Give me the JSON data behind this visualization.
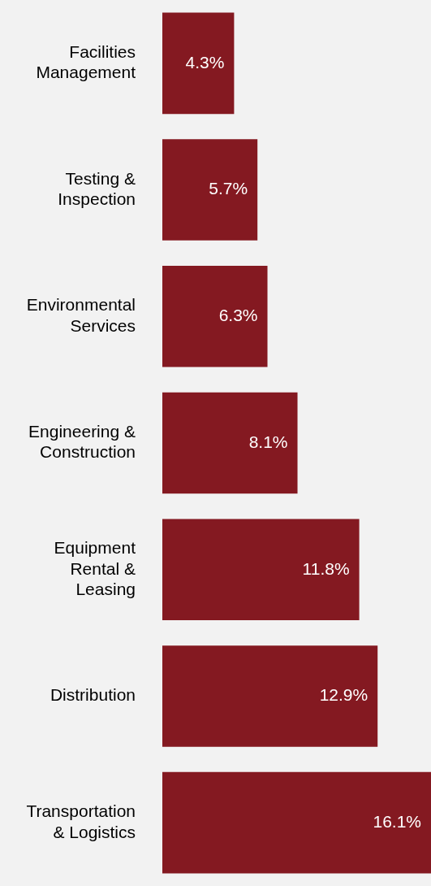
{
  "chart_data": {
    "type": "bar",
    "orientation": "horizontal",
    "categories": [
      "Facilities Management",
      "Testing & Inspection",
      "Environmental Services",
      "Engineering & Construction",
      "Equipment Rental & Leasing",
      "Distribution",
      "Transportation & Logistics"
    ],
    "values": [
      4.3,
      5.7,
      6.3,
      8.1,
      11.8,
      12.9,
      16.1
    ],
    "value_labels": [
      "4.3%",
      "5.7%",
      "6.3%",
      "8.1%",
      "11.8%",
      "12.9%",
      "16.1%"
    ],
    "color": "#841921",
    "legend": false
  }
}
